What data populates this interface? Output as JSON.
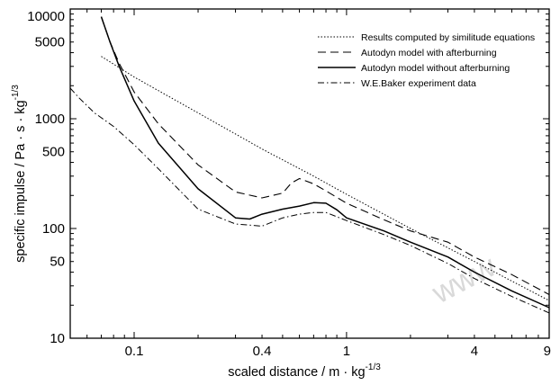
{
  "chart_data": {
    "type": "line",
    "title": "",
    "xlabel": "scaled distance / m",
    "xlabel_unit": "kg",
    "xlabel_exp": "-1/3",
    "ylabel": "specific impulse / Pa",
    "ylabel_unit_s": "s",
    "ylabel_unit_kg": "kg",
    "ylabel_exp": "-1/3",
    "xscale": "log",
    "yscale": "log",
    "xlim": [
      0.05,
      9
    ],
    "ylim": [
      10,
      10000
    ],
    "grid": false,
    "legend_position": "top-right",
    "x_ticks": [
      {
        "value": 0.1,
        "label": "0.1"
      },
      {
        "value": 0.4,
        "label": "0.4"
      },
      {
        "value": 1,
        "label": "1"
      },
      {
        "value": 4,
        "label": "4"
      },
      {
        "value": 9,
        "label": "9"
      }
    ],
    "y_ticks": [
      {
        "value": 10,
        "label": "10"
      },
      {
        "value": 50,
        "label": "50"
      },
      {
        "value": 100,
        "label": "100"
      },
      {
        "value": 500,
        "label": "500"
      },
      {
        "value": 1000,
        "label": "1000"
      },
      {
        "value": 5000,
        "label": "5000"
      },
      {
        "value": 10000,
        "label": "10000"
      }
    ],
    "watermark": "www",
    "series": [
      {
        "name": "Results computed by similitude equations",
        "style": "dotted",
        "x": [
          0.07,
          0.1,
          0.2,
          0.4,
          0.7,
          1,
          2,
          4,
          9
        ],
        "y": [
          3700,
          2400,
          1130,
          530,
          300,
          205,
          100,
          50,
          22
        ]
      },
      {
        "name": "Autodyn model with afterburning",
        "style": "dashed",
        "x": [
          0.07,
          0.077,
          0.085,
          0.1,
          0.13,
          0.2,
          0.3,
          0.4,
          0.5,
          0.55,
          0.6,
          0.7,
          0.8,
          1,
          1.5,
          2,
          3,
          4,
          6,
          9
        ],
        "y": [
          8500,
          5000,
          3200,
          1750,
          900,
          380,
          215,
          190,
          210,
          260,
          285,
          255,
          220,
          170,
          120,
          95,
          75,
          55,
          38,
          25
        ]
      },
      {
        "name": "Autodyn model without afterburning",
        "style": "solid",
        "x": [
          0.07,
          0.077,
          0.085,
          0.1,
          0.13,
          0.2,
          0.3,
          0.35,
          0.4,
          0.5,
          0.6,
          0.7,
          0.8,
          0.9,
          1,
          1.5,
          2,
          3,
          4,
          6,
          9
        ],
        "y": [
          8500,
          5000,
          3000,
          1450,
          600,
          230,
          125,
          122,
          135,
          150,
          160,
          172,
          170,
          148,
          125,
          95,
          75,
          55,
          40,
          27,
          19
        ]
      },
      {
        "name": "W.E.Baker experiment data",
        "style": "dashdot",
        "x": [
          0.05,
          0.055,
          0.065,
          0.08,
          0.1,
          0.13,
          0.2,
          0.3,
          0.4,
          0.5,
          0.6,
          0.7,
          0.8,
          1,
          1.5,
          2,
          3,
          4,
          6,
          9
        ],
        "y": [
          1900,
          1550,
          1130,
          850,
          580,
          350,
          150,
          110,
          105,
          125,
          135,
          140,
          140,
          118,
          88,
          70,
          48,
          35,
          24,
          17
        ]
      }
    ]
  }
}
